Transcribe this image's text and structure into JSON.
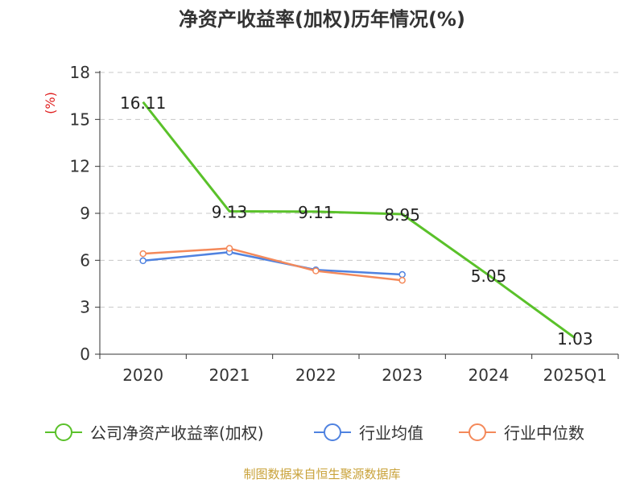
{
  "chart_data": {
    "type": "line",
    "title": "净资产收益率(加权)历年情况(%)",
    "ylabel": "(%)",
    "xlabel": "",
    "ylim": [
      0,
      18
    ],
    "yticks": [
      0,
      3,
      6,
      9,
      12,
      15,
      18
    ],
    "categories": [
      "2020",
      "2021",
      "2022",
      "2023",
      "2024",
      "2025Q1"
    ],
    "grid": true,
    "legend_position": "bottom",
    "series": [
      {
        "name": "公司净资产收益率(加权)",
        "color": "#5ac12a",
        "values": [
          16.11,
          9.13,
          9.11,
          8.95,
          5.05,
          1.03
        ],
        "labels": [
          "16.11",
          "9.13",
          "9.11",
          "8.95",
          "5.05",
          "1.03"
        ]
      },
      {
        "name": "行业均值",
        "color": "#4f82e0",
        "values": [
          5.97,
          6.52,
          5.39,
          5.09,
          null,
          null
        ]
      },
      {
        "name": "行业中位数",
        "color": "#f4895a",
        "values": [
          6.42,
          6.76,
          5.32,
          4.72,
          null,
          null
        ]
      }
    ]
  },
  "source": "制图数据来自恒生聚源数据库"
}
